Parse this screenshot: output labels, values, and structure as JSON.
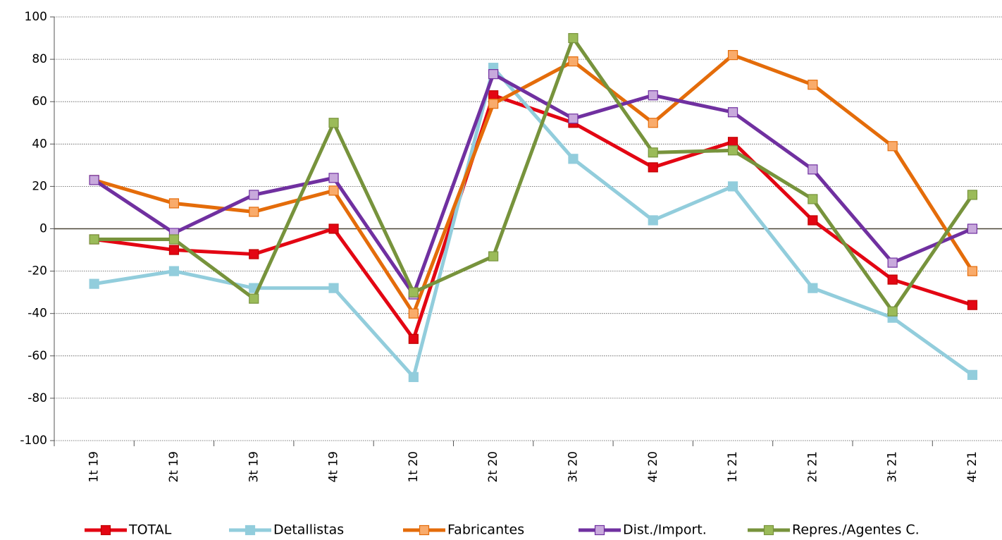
{
  "chart_data": {
    "type": "line",
    "categories": [
      "1t 19",
      "2t 19",
      "3t 19",
      "4t 19",
      "1t 20",
      "2t 20",
      "3t 20",
      "4t 20",
      "1t 21",
      "2t 21",
      "3t 21",
      "4t 21"
    ],
    "series": [
      {
        "name": "TOTAL",
        "color": "#e30613",
        "marker_color": "#e30613",
        "values": [
          -5,
          -10,
          -12,
          0,
          -52,
          63,
          50,
          29,
          41,
          4,
          -24,
          -36
        ]
      },
      {
        "name": "Detallistas",
        "color": "#92cddc",
        "marker_color": "#92cddc",
        "values": [
          -26,
          -20,
          -28,
          -28,
          -70,
          76,
          33,
          4,
          20,
          -28,
          -42,
          -69
        ]
      },
      {
        "name": "Fabricantes",
        "color": "#e46c0a",
        "marker_color": "#f9ab6b",
        "values": [
          23,
          12,
          8,
          18,
          -40,
          59,
          79,
          50,
          82,
          68,
          39,
          -20
        ]
      },
      {
        "name": "Dist./Import.",
        "color": "#7030a0",
        "marker_color": "#c8a9dc",
        "values": [
          23,
          -2,
          16,
          24,
          -31,
          73,
          52,
          63,
          55,
          28,
          -16,
          0
        ]
      },
      {
        "name": "Repres./Agentes C.",
        "color": "#77933c",
        "marker_color": "#9bbb59",
        "values": [
          -5,
          -5,
          -33,
          50,
          -30,
          -13,
          90,
          36,
          37,
          14,
          -39,
          16
        ]
      }
    ],
    "ylim": [
      -100,
      100
    ],
    "yticks": [
      -100,
      -80,
      -60,
      -40,
      -20,
      0,
      20,
      40,
      60,
      80,
      100
    ],
    "grid": true,
    "legend": "bottom"
  }
}
